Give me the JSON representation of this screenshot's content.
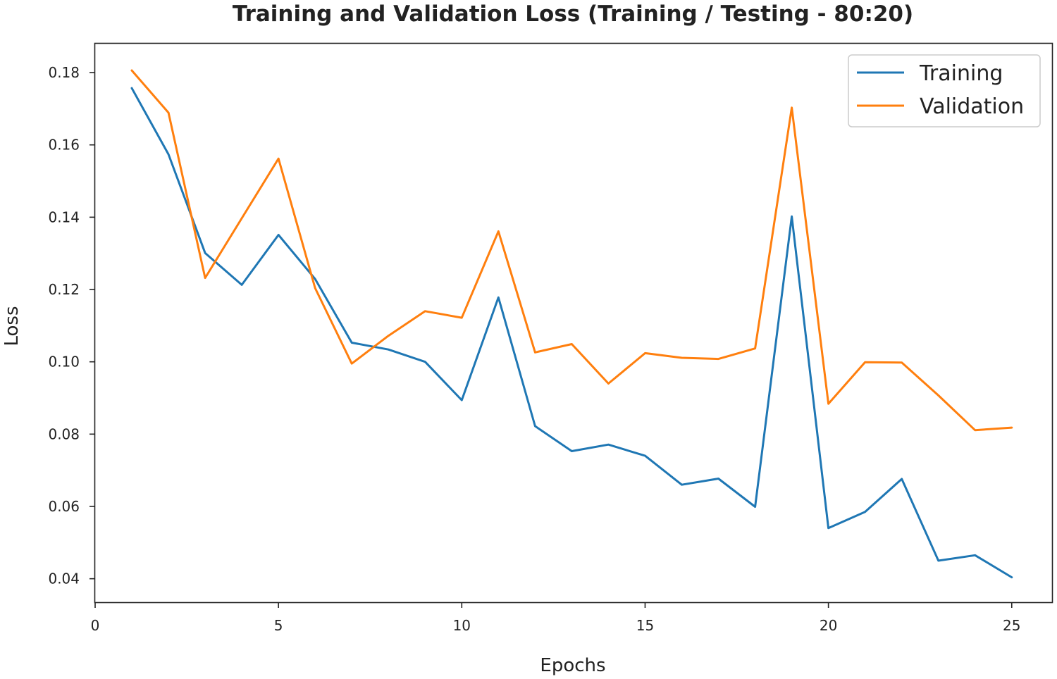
{
  "chart_data": {
    "type": "line",
    "title": "Training and Validation Loss (Training / Testing - 80:20)",
    "xlabel": "Epochs",
    "ylabel": "Loss",
    "xlim": [
      0,
      26.1
    ],
    "ylim": [
      0.0335,
      0.188
    ],
    "xticks": [
      0,
      5,
      10,
      15,
      20,
      25
    ],
    "yticks": [
      0.04,
      0.06,
      0.08,
      0.1,
      0.12,
      0.14,
      0.16,
      0.18
    ],
    "xtick_labels": [
      "0",
      "5",
      "10",
      "15",
      "20",
      "25"
    ],
    "ytick_labels": [
      "0.04",
      "0.06",
      "0.08",
      "0.10",
      "0.12",
      "0.14",
      "0.16",
      "0.18"
    ],
    "grid": false,
    "legend_position": "top-right",
    "x": [
      1,
      2,
      3,
      4,
      5,
      6,
      7,
      8,
      9,
      10,
      11,
      12,
      13,
      14,
      15,
      16,
      17,
      18,
      19,
      20,
      21,
      22,
      23,
      24,
      25
    ],
    "series": [
      {
        "name": "Training",
        "color": "#1f77b4",
        "values": [
          0.1757,
          0.1574,
          0.1301,
          0.1213,
          0.1351,
          0.1229,
          0.1053,
          0.1034,
          0.1,
          0.0894,
          0.1178,
          0.0822,
          0.0753,
          0.0771,
          0.074,
          0.066,
          0.0677,
          0.0599,
          0.1402,
          0.054,
          0.0585,
          0.0676,
          0.045,
          0.0465,
          0.0404
        ]
      },
      {
        "name": "Validation",
        "color": "#ff7f0e",
        "values": [
          0.1806,
          0.1689,
          0.1232,
          0.1397,
          0.1562,
          0.1204,
          0.0995,
          0.1072,
          0.114,
          0.1122,
          0.1361,
          0.1026,
          0.1049,
          0.094,
          0.1024,
          0.1011,
          0.1008,
          0.1037,
          0.1703,
          0.0884,
          0.0999,
          0.0998,
          0.0907,
          0.0811,
          0.0818
        ]
      }
    ]
  }
}
